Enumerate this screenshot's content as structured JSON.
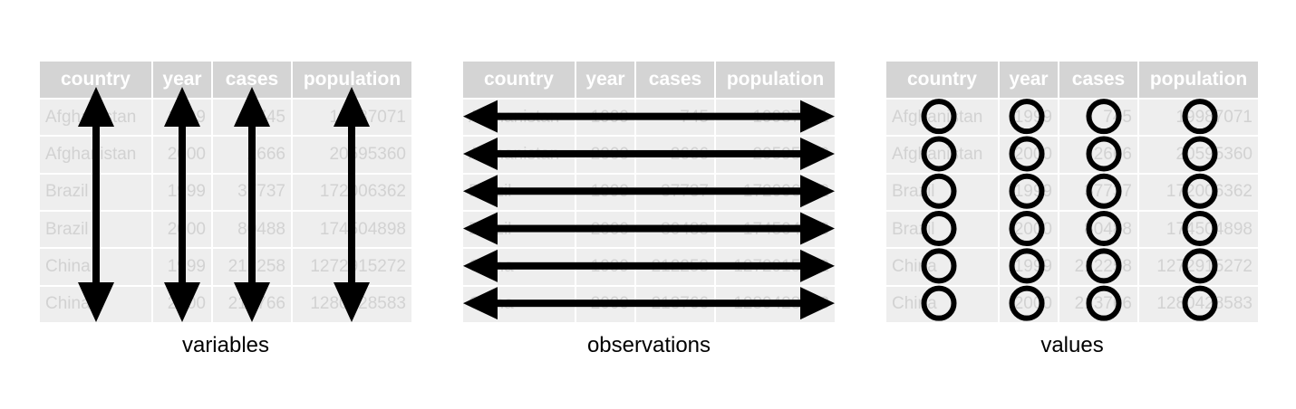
{
  "columns": [
    "country",
    "year",
    "cases",
    "population"
  ],
  "rows": [
    [
      "Afghanistan",
      "1999",
      "745",
      "19987071"
    ],
    [
      "Afghanistan",
      "2000",
      "2666",
      "20595360"
    ],
    [
      "Brazil",
      "1999",
      "37737",
      "172006362"
    ],
    [
      "Brazil",
      "2000",
      "80488",
      "174504898"
    ],
    [
      "China",
      "1999",
      "212258",
      "1272915272"
    ],
    [
      "China",
      "2000",
      "213766",
      "1280428583"
    ]
  ],
  "panels": [
    {
      "caption": "variables",
      "marker": "vertical-double-arrow"
    },
    {
      "caption": "observations",
      "marker": "horizontal-double-arrow"
    },
    {
      "caption": "values",
      "marker": "circle"
    }
  ],
  "colors": {
    "header_bg": "#d4d4d4",
    "cell_bg": "#eeeeee",
    "cell_text": "#d2d2d2",
    "marker": "#000000"
  }
}
